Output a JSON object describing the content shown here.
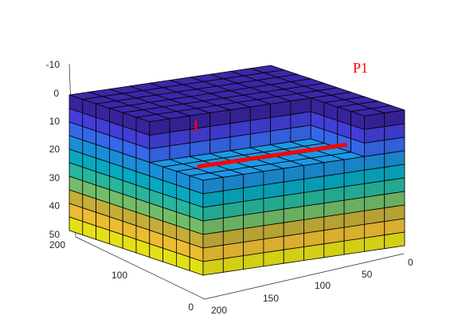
{
  "chart_data": {
    "type": "3d-grid-block",
    "z_axis": {
      "reversed": true,
      "ticks": [
        "-10",
        "0",
        "10",
        "20",
        "30",
        "40",
        "50"
      ]
    },
    "y_axis": {
      "ticks": [
        "200",
        "100",
        "0"
      ]
    },
    "x_axis": {
      "ticks": [
        "200",
        "150",
        "100",
        "50",
        "0"
      ]
    },
    "grid": {
      "cells_x": 10,
      "cells_y": 10,
      "layers": 10,
      "edge_color": "#000000"
    },
    "layer_colors": [
      "#3d26a8",
      "#4743e7",
      "#3a6ffd",
      "#1d98e6",
      "#09b5d0",
      "#2bc3a8",
      "#7bca71",
      "#d3bb3c",
      "#fdca36",
      "#f5f118"
    ],
    "cutout": {
      "x_cells": 8,
      "y_cells": 4,
      "layers": 3
    },
    "well": {
      "name": "P1",
      "color": "#ff0000"
    }
  }
}
